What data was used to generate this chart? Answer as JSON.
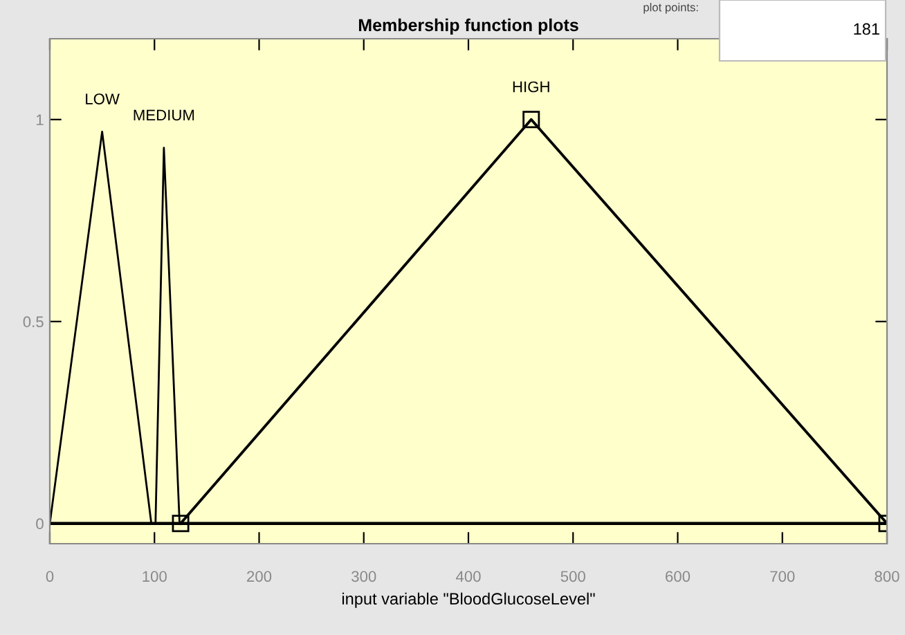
{
  "chart_data": {
    "type": "line",
    "title": "Membership function plots",
    "xlabel": "input variable \"BloodGlucoseLevel\"",
    "annotations": [
      "plot points:",
      "181"
    ],
    "xlim": [
      0,
      800
    ],
    "ylim": [
      -0.05,
      1.2
    ],
    "xticks": [
      0,
      100,
      200,
      300,
      400,
      500,
      600,
      700,
      800
    ],
    "yticks": [
      0,
      0.5,
      1
    ],
    "grid": false,
    "legend": false,
    "line_style": "solid",
    "ref_lines": [
      {
        "axis": "y",
        "value": 0,
        "color": "#000000"
      }
    ],
    "series": [
      {
        "name": "LOW",
        "color": "#000000",
        "marker": "none",
        "x": [
          0,
          50,
          97
        ],
        "values": [
          0,
          0.97,
          0
        ]
      },
      {
        "name": "MEDIUM",
        "color": "#000000",
        "marker": "none",
        "x": [
          101,
          109,
          124
        ],
        "values": [
          0,
          0.93,
          0
        ]
      },
      {
        "name": "HIGH",
        "color": "#000000",
        "marker": "square",
        "x": [
          125,
          460,
          800
        ],
        "values": [
          0,
          1,
          0
        ]
      }
    ]
  }
}
